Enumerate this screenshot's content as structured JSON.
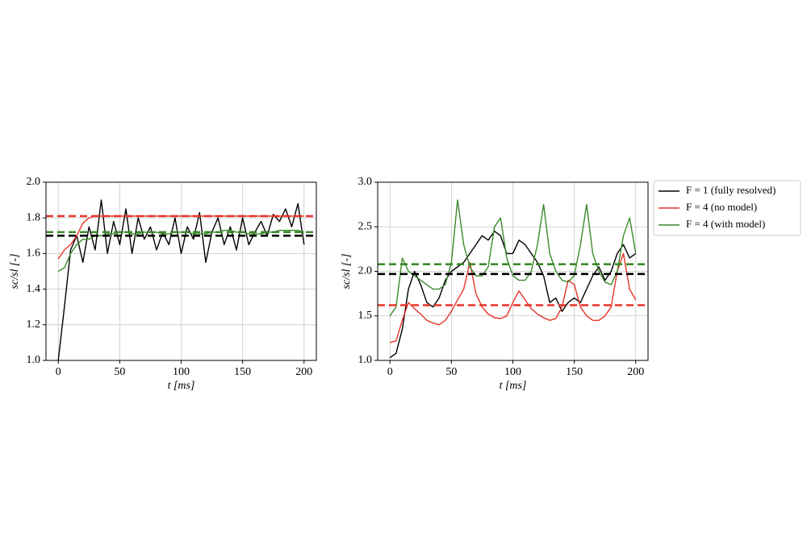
{
  "chart_data": [
    {
      "type": "line",
      "xlabel": "t [ms]",
      "ylabel": "sc/sl [-]",
      "xlim": [
        -10,
        210
      ],
      "ylim": [
        1.0,
        2.0
      ],
      "xticks": [
        0,
        50,
        100,
        150,
        200
      ],
      "yticks": [
        {
          "value": 1.0,
          "label": "1.0"
        },
        1.2,
        1.4,
        1.6,
        1.8,
        {
          "value": 2.0,
          "label": "2.0"
        }
      ],
      "grid": true,
      "x": [
        0,
        5,
        10,
        15,
        20,
        25,
        30,
        35,
        40,
        45,
        50,
        55,
        60,
        65,
        70,
        75,
        80,
        85,
        90,
        95,
        100,
        105,
        110,
        115,
        120,
        125,
        130,
        135,
        140,
        145,
        150,
        155,
        160,
        165,
        170,
        175,
        180,
        185,
        190,
        195,
        200
      ],
      "series": [
        {
          "color": "#000000",
          "values": [
            1.0,
            1.3,
            1.62,
            1.7,
            1.55,
            1.75,
            1.62,
            1.9,
            1.6,
            1.78,
            1.65,
            1.85,
            1.6,
            1.8,
            1.68,
            1.75,
            1.62,
            1.72,
            1.65,
            1.8,
            1.6,
            1.75,
            1.68,
            1.83,
            1.55,
            1.72,
            1.8,
            1.65,
            1.75,
            1.62,
            1.8,
            1.65,
            1.72,
            1.78,
            1.7,
            1.82,
            1.78,
            1.85,
            1.75,
            1.88,
            1.65
          ]
        },
        {
          "color": "#e8332a",
          "values": [
            1.57,
            1.62,
            1.65,
            1.7,
            1.77,
            1.8,
            1.81,
            1.81,
            1.81,
            1.81,
            1.81,
            1.81,
            1.81,
            1.81,
            1.81,
            1.81,
            1.81,
            1.81,
            1.81,
            1.81,
            1.81,
            1.81,
            1.81,
            1.81,
            1.81,
            1.81,
            1.81,
            1.81,
            1.81,
            1.81,
            1.81,
            1.81,
            1.81,
            1.81,
            1.81,
            1.81,
            1.81,
            1.81,
            1.81,
            1.81,
            1.81
          ]
        },
        {
          "color": "#3a8a2a",
          "values": [
            1.5,
            1.52,
            1.6,
            1.65,
            1.68,
            1.68,
            1.7,
            1.7,
            1.71,
            1.71,
            1.72,
            1.72,
            1.71,
            1.71,
            1.72,
            1.72,
            1.72,
            1.71,
            1.71,
            1.72,
            1.72,
            1.72,
            1.71,
            1.71,
            1.71,
            1.72,
            1.72,
            1.73,
            1.73,
            1.72,
            1.72,
            1.71,
            1.71,
            1.71,
            1.72,
            1.72,
            1.73,
            1.73,
            1.73,
            1.73,
            1.72
          ]
        }
      ],
      "hlines": [
        {
          "value": 1.81,
          "color": "#e8332a"
        },
        {
          "value": 1.72,
          "color": "#3a8a2a"
        },
        {
          "value": 1.7,
          "color": "#000000"
        }
      ]
    },
    {
      "type": "line",
      "xlabel": "t [ms]",
      "ylabel": "sc/sl [-]",
      "xlim": [
        -10,
        210
      ],
      "ylim": [
        1.0,
        3.0
      ],
      "xticks": [
        0,
        50,
        100,
        150,
        200
      ],
      "yticks": [
        {
          "value": 1.0,
          "label": "1.0"
        },
        1.5,
        {
          "value": 2.0,
          "label": "2.0"
        },
        2.5,
        {
          "value": 3.0,
          "label": "3.0"
        }
      ],
      "grid": true,
      "legend": "outside right",
      "x": [
        0,
        5,
        10,
        15,
        20,
        25,
        30,
        35,
        40,
        45,
        50,
        55,
        60,
        65,
        70,
        75,
        80,
        85,
        90,
        95,
        100,
        105,
        110,
        115,
        120,
        125,
        130,
        135,
        140,
        145,
        150,
        155,
        160,
        165,
        170,
        175,
        180,
        185,
        190,
        195,
        200
      ],
      "series": [
        {
          "name": "F = 1 (fully resolved)",
          "color": "#000000",
          "values": [
            1.03,
            1.08,
            1.35,
            1.8,
            2.0,
            1.85,
            1.65,
            1.6,
            1.7,
            1.9,
            2.0,
            2.05,
            2.1,
            2.2,
            2.3,
            2.4,
            2.35,
            2.45,
            2.4,
            2.2,
            2.2,
            2.35,
            2.3,
            2.2,
            2.1,
            1.95,
            1.65,
            1.7,
            1.55,
            1.65,
            1.7,
            1.65,
            1.8,
            1.95,
            2.05,
            1.9,
            2.0,
            2.2,
            2.3,
            2.15,
            2.2
          ]
        },
        {
          "name": "F = 4 (no model)",
          "color": "#e8332a",
          "values": [
            1.2,
            1.22,
            1.45,
            1.65,
            1.58,
            1.52,
            1.45,
            1.42,
            1.4,
            1.45,
            1.55,
            1.68,
            1.8,
            2.1,
            1.75,
            1.6,
            1.52,
            1.48,
            1.47,
            1.5,
            1.65,
            1.78,
            1.68,
            1.58,
            1.52,
            1.48,
            1.45,
            1.47,
            1.6,
            1.9,
            1.85,
            1.6,
            1.5,
            1.45,
            1.45,
            1.5,
            1.6,
            2.0,
            2.2,
            1.8,
            1.68
          ]
        },
        {
          "name": "F = 4 (with model)",
          "color": "#3a8a2a",
          "values": [
            1.5,
            1.6,
            2.15,
            2.0,
            1.95,
            1.9,
            1.85,
            1.8,
            1.8,
            1.85,
            2.1,
            2.8,
            2.3,
            2.05,
            1.95,
            1.95,
            2.05,
            2.5,
            2.6,
            2.15,
            1.95,
            1.9,
            1.9,
            2.0,
            2.3,
            2.75,
            2.2,
            2.0,
            1.9,
            1.88,
            1.95,
            2.3,
            2.75,
            2.2,
            2.0,
            1.88,
            1.85,
            2.0,
            2.4,
            2.6,
            2.2
          ]
        }
      ],
      "hlines": [
        {
          "value": 2.08,
          "color": "#3a8a2a"
        },
        {
          "value": 1.97,
          "color": "#000000"
        },
        {
          "value": 1.62,
          "color": "#e8332a"
        }
      ]
    }
  ]
}
